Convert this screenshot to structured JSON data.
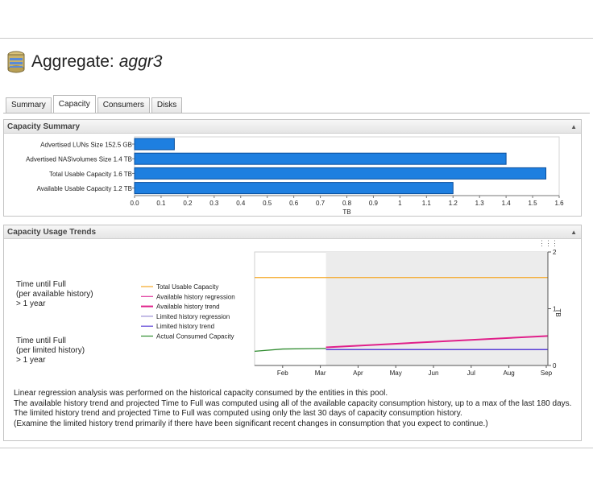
{
  "page": {
    "title_prefix": "Aggregate:",
    "title_name": "aggr3",
    "db_icon": "database-icon"
  },
  "tabs": [
    {
      "label": "Summary",
      "active": false
    },
    {
      "label": "Capacity",
      "active": true
    },
    {
      "label": "Consumers",
      "active": false
    },
    {
      "label": "Disks",
      "active": false
    }
  ],
  "capacity_summary": {
    "header": "Capacity Summary",
    "chart_data": {
      "type": "bar",
      "orientation": "horizontal",
      "categories": [
        "Advertised LUNs Size 152.5 GB",
        "Advertised NAS\\volumes Size 1.4 TB",
        "Total Usable Capacity 1.6 TB",
        "Available Usable Capacity 1.2 TB"
      ],
      "values": [
        0.15,
        1.4,
        1.55,
        1.2
      ],
      "xlim": [
        0,
        1.6
      ],
      "ticks": [
        "0.0",
        "0.1",
        "0.2",
        "0.3",
        "0.4",
        "0.5",
        "0.6",
        "0.7",
        "0.8",
        "0.9",
        "1",
        "1.1",
        "1.2",
        "1.3",
        "1.4",
        "1.5",
        "1.6"
      ],
      "xlabel": "TB",
      "bar_color": "#1e7fe0",
      "grid": false
    }
  },
  "usage_trends": {
    "header": "Capacity Usage Trends",
    "time_full_available": [
      "Time until Full",
      "(per available history)",
      "> 1 year"
    ],
    "time_full_limited": [
      "Time until Full",
      "(per limited history)",
      "> 1 year"
    ],
    "legend": [
      {
        "label": "Total Usable Capacity",
        "color": "#f5a623"
      },
      {
        "label": "Available history regression",
        "color": "#e040a0"
      },
      {
        "label": "Available history trend",
        "color": "#e0208a"
      },
      {
        "label": "Limited history regression",
        "color": "#9b8fd6"
      },
      {
        "label": "Limited history trend",
        "color": "#5a3fd6"
      },
      {
        "label": "Actual Consumed Capacity",
        "color": "#2e8b2e"
      }
    ],
    "chart_data": {
      "type": "line",
      "x_ticks": [
        "Feb",
        "Mar",
        "Apr",
        "May",
        "Jun",
        "Jul",
        "Aug",
        "Sep"
      ],
      "y_ticks": [
        "0",
        "1",
        "2"
      ],
      "ylabel": "TB",
      "ylim": [
        0,
        2
      ],
      "shaded_from": "Mar",
      "series": [
        {
          "name": "Total Usable Capacity",
          "x": [
            "Jan",
            "Sep"
          ],
          "y": [
            1.55,
            1.55
          ]
        },
        {
          "name": "Available history trend",
          "x": [
            "Mar",
            "Sep"
          ],
          "y": [
            0.32,
            0.52
          ]
        },
        {
          "name": "Limited history trend",
          "x": [
            "Mar",
            "Sep"
          ],
          "y": [
            0.28,
            0.28
          ]
        },
        {
          "name": "Actual Consumed Capacity",
          "x": [
            "Jan",
            "Feb",
            "Mar"
          ],
          "y": [
            0.25,
            0.29,
            0.3
          ]
        }
      ]
    },
    "notes": [
      "Linear regression analysis was performed on the historical capacity consumed by the entities in this pool.",
      "The available history trend and projected Time to Full was computed using all of the available capacity consumption history, up to a max of the last 180 days.",
      "The limited history trend and projected Time to Full was computed using only the last 30 days of capacity consumption history.",
      "(Examine the limited history trend primarily if there have been significant recent changes in consumption that you expect to continue.)"
    ]
  }
}
